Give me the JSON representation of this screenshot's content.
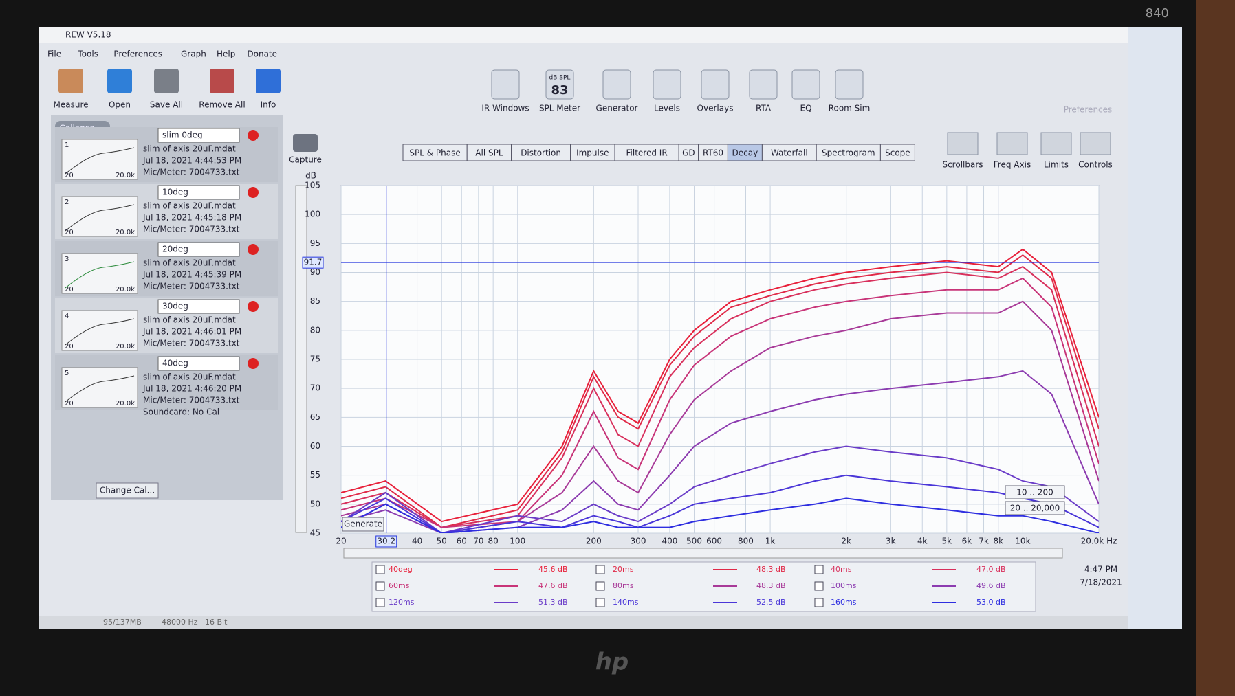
{
  "window": {
    "title": "REW V5.18"
  },
  "menu": [
    "File",
    "Tools",
    "Preferences",
    "Graph",
    "Help",
    "Donate"
  ],
  "toolbar_left": [
    "Measure",
    "Open",
    "Save All",
    "Remove All",
    "Info"
  ],
  "toolbar_center": [
    "IR Windows",
    "SPL Meter",
    "Generator",
    "Levels",
    "Overlays",
    "RTA",
    "EQ",
    "Room Sim"
  ],
  "spl_icon": {
    "unit": "dB SPL",
    "reading": "83"
  },
  "toolbar_right": [
    "Preferences"
  ],
  "graph_controls": [
    "Scrollbars",
    "Freq Axis",
    "Limits",
    "Controls"
  ],
  "capture": "Capture",
  "tabs": [
    "SPL & Phase",
    "All SPL",
    "Distortion",
    "Impulse",
    "Filtered IR",
    "GD",
    "RT60",
    "Decay",
    "Waterfall",
    "Spectrogram",
    "Scope"
  ],
  "selected_tab_index": 7,
  "measurements": {
    "collapse": "Collapse",
    "change_cal": "Change Cal...",
    "items": [
      {
        "number": "1",
        "name": "slim 0deg",
        "lines": [
          "slim of axis 20uF.mdat",
          "Jul 18, 2021 4:44:53 PM",
          "Mic/Meter: 7004733.txt"
        ],
        "thumb_axis": [
          "20",
          "20.0k"
        ]
      },
      {
        "number": "2",
        "name": "10deg",
        "lines": [
          "slim of axis 20uF.mdat",
          "Jul 18, 2021 4:45:18 PM",
          "Mic/Meter: 7004733.txt"
        ],
        "thumb_axis": [
          "20",
          "20.0k"
        ]
      },
      {
        "number": "3",
        "name": "20deg",
        "lines": [
          "slim of axis 20uF.mdat",
          "Jul 18, 2021 4:45:39 PM",
          "Mic/Meter: 7004733.txt"
        ],
        "thumb_axis": [
          "20",
          "20.0k"
        ]
      },
      {
        "number": "4",
        "name": "30deg",
        "lines": [
          "slim of axis 20uF.mdat",
          "Jul 18, 2021 4:46:01 PM",
          "Mic/Meter: 7004733.txt"
        ],
        "thumb_axis": [
          "20",
          "20.0k"
        ]
      },
      {
        "number": "5",
        "name": "40deg",
        "lines": [
          "slim of axis 20uF.mdat",
          "Jul 18, 2021 4:46:20 PM",
          "Mic/Meter: 7004733.txt",
          "Soundcard: No Cal"
        ],
        "thumb_axis": [
          "20",
          "20.0k"
        ]
      }
    ]
  },
  "chart_data": {
    "type": "line",
    "ylabel": "dB",
    "xscale": "log",
    "grid": true,
    "xlim": [
      20,
      20000
    ],
    "ylim": [
      45,
      105
    ],
    "yticks": [
      45,
      50,
      55,
      60,
      65,
      70,
      75,
      80,
      85,
      90,
      95,
      100,
      105
    ],
    "xticks": [
      20,
      40,
      50,
      60,
      70,
      80,
      100,
      200,
      300,
      400,
      500,
      600,
      800,
      {
        "value": 1000,
        "label": "1k"
      },
      {
        "value": 2000,
        "label": "2k"
      },
      {
        "value": 3000,
        "label": "3k"
      },
      {
        "value": 4000,
        "label": "4k"
      },
      {
        "value": 5000,
        "label": "5k"
      },
      {
        "value": 6000,
        "label": "6k"
      },
      {
        "value": 7000,
        "label": "7k"
      },
      {
        "value": 8000,
        "label": "8k"
      },
      {
        "value": 10000,
        "label": "10k"
      },
      {
        "value": 20000,
        "label": "20.0k Hz"
      }
    ],
    "cursor": {
      "x": {
        "value": 30.2,
        "label": "30.2"
      },
      "y": {
        "value": 91.7,
        "label": "91.7"
      }
    },
    "x": [
      20,
      30,
      50,
      100,
      150,
      200,
      250,
      300,
      400,
      500,
      700,
      1000,
      1500,
      2000,
      3000,
      5000,
      8000,
      10000,
      13000,
      20000
    ],
    "series": [
      {
        "name": "40deg",
        "color": "#e8203a",
        "readout": "45.6 dB",
        "values": [
          52,
          54,
          47,
          50,
          60,
          73,
          66,
          64,
          75,
          80,
          85,
          87,
          89,
          90,
          91,
          92,
          91,
          94,
          90,
          65
        ]
      },
      {
        "name": "20ms",
        "color": "#e02a48",
        "readout": "48.3 dB",
        "values": [
          51,
          53,
          46,
          49,
          59,
          72,
          65,
          63,
          74,
          79,
          84,
          86,
          88,
          89,
          90,
          91,
          90,
          93,
          89,
          63
        ]
      },
      {
        "name": "40ms",
        "color": "#d8305c",
        "readout": "47.0 dB",
        "values": [
          50,
          52,
          46,
          48,
          58,
          70,
          62,
          60,
          72,
          77,
          82,
          85,
          87,
          88,
          89,
          90,
          89,
          91,
          87,
          60
        ]
      },
      {
        "name": "60ms",
        "color": "#c83478",
        "readout": "47.6 dB",
        "values": [
          49,
          51,
          46,
          47,
          55,
          66,
          58,
          56,
          68,
          74,
          79,
          82,
          84,
          85,
          86,
          87,
          87,
          89,
          84,
          57
        ]
      },
      {
        "name": "80ms",
        "color": "#a83a98",
        "readout": "48.3 dB",
        "values": [
          48,
          50,
          45,
          47,
          52,
          60,
          54,
          52,
          62,
          68,
          73,
          77,
          79,
          80,
          82,
          83,
          83,
          85,
          80,
          54
        ]
      },
      {
        "name": "100ms",
        "color": "#8c3cb0",
        "readout": "49.6 dB",
        "values": [
          47,
          49,
          45,
          46,
          49,
          54,
          50,
          49,
          55,
          60,
          64,
          66,
          68,
          69,
          70,
          71,
          72,
          73,
          69,
          50
        ]
      },
      {
        "name": "120ms",
        "color": "#6a3cc8",
        "readout": "51.3 dB",
        "values": [
          47,
          52,
          45,
          48,
          47,
          50,
          48,
          47,
          50,
          53,
          55,
          57,
          59,
          60,
          59,
          58,
          56,
          54,
          53,
          47
        ]
      },
      {
        "name": "140ms",
        "color": "#4a36d8",
        "readout": "52.5 dB",
        "values": [
          47,
          51,
          45,
          47,
          46,
          48,
          47,
          46,
          48,
          50,
          51,
          52,
          54,
          55,
          54,
          53,
          52,
          51,
          50,
          46
        ]
      },
      {
        "name": "160ms",
        "color": "#2e2ee0",
        "readout": "53.0 dB",
        "values": [
          46,
          50,
          45,
          46,
          46,
          47,
          46,
          46,
          46,
          47,
          48,
          49,
          50,
          51,
          50,
          49,
          48,
          48,
          47,
          45
        ]
      }
    ]
  },
  "plot_buttons": {
    "generate": "Generate",
    "ranges": [
      "10 .. 200",
      "20 .. 20,000"
    ]
  },
  "status": [
    "95/137MB",
    "48000 Hz",
    "16 Bit"
  ],
  "clock": {
    "time": "4:47 PM",
    "date": "7/18/2021"
  },
  "device": {
    "model": "840",
    "brand": "hp"
  }
}
